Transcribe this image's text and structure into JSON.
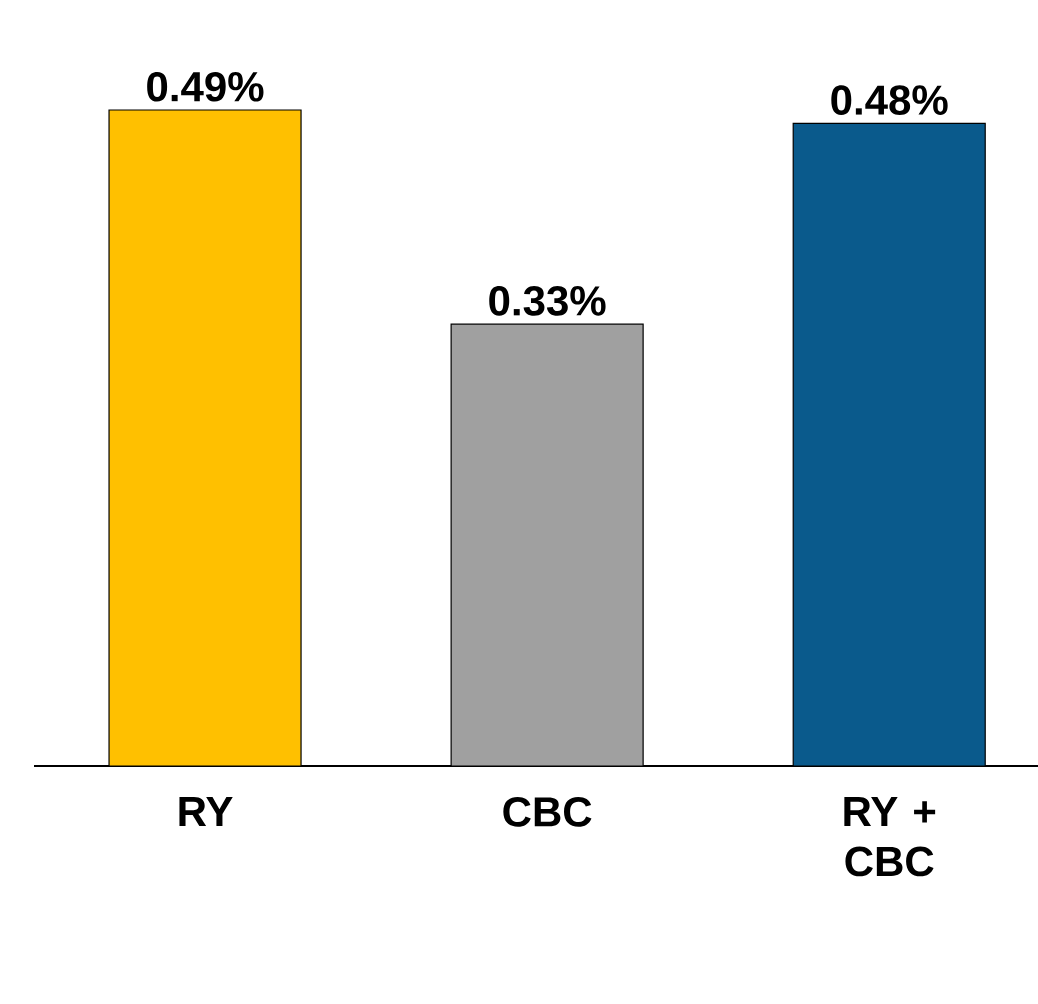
{
  "chart_data": {
    "type": "bar",
    "categories": [
      "RY",
      "CBC",
      "RY + CBC"
    ],
    "values": [
      0.49,
      0.33,
      0.48
    ],
    "colors": [
      "#ffc000",
      "#a0a0a0",
      "#0a5a8c"
    ],
    "value_labels": [
      "0.49%",
      "0.33%",
      "0.48%"
    ],
    "data_labels": false
  }
}
